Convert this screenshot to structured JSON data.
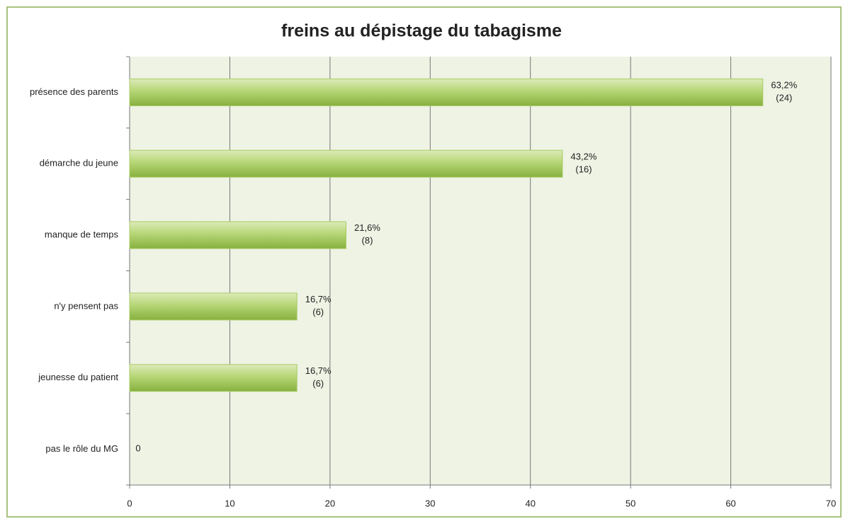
{
  "chart_data": {
    "type": "barh",
    "title": "freins au dépistage du tabagisme",
    "categories": [
      "présence des parents",
      "démarche du jeune",
      "manque de temps",
      "n'y pensent pas",
      "jeunesse du patient",
      "pas le rôle du MG"
    ],
    "values": [
      63.2,
      43.2,
      21.6,
      16.7,
      16.7,
      0
    ],
    "value_labels": [
      [
        "63,2%",
        "(24)"
      ],
      [
        "43,2%",
        "(16)"
      ],
      [
        "21,6%",
        "(8)"
      ],
      [
        "16,7%",
        "(6)"
      ],
      [
        "16,7%",
        "(6)"
      ],
      [
        "0"
      ]
    ],
    "color": "#a9cc63",
    "xlim": [
      0,
      70
    ],
    "xticks": [
      0,
      10,
      20,
      30,
      40,
      50,
      60,
      70
    ],
    "grid": true
  }
}
